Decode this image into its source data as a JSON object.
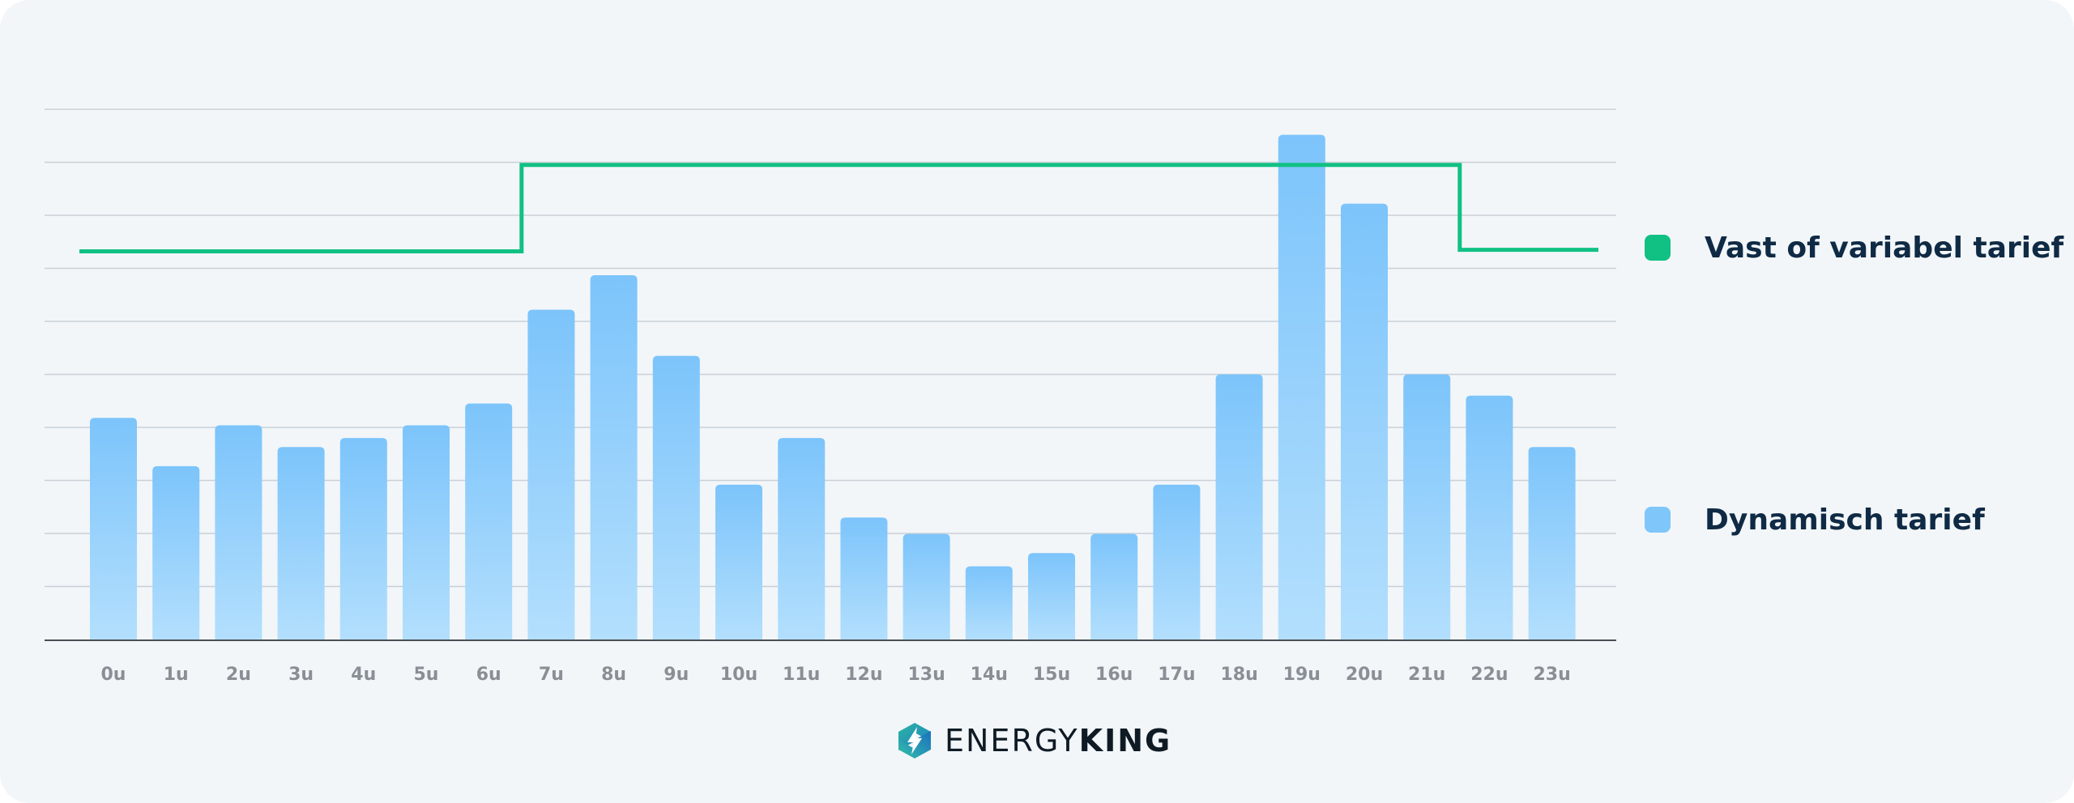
{
  "chart_data": {
    "type": "bar",
    "title": "",
    "xlabel": "",
    "ylabel": "",
    "categories": [
      "0u",
      "1u",
      "2u",
      "3u",
      "4u",
      "5u",
      "6u",
      "7u",
      "8u",
      "9u",
      "10u",
      "11u",
      "12u",
      "13u",
      "14u",
      "15u",
      "16u",
      "17u",
      "18u",
      "19u",
      "20u",
      "21u",
      "22u",
      "23u"
    ],
    "ylim": [
      0,
      10
    ],
    "grid": true,
    "series": [
      {
        "name": "Dynamisch tarief",
        "type": "bar",
        "color": "#7fc6fb",
        "values": [
          4.18,
          3.27,
          4.04,
          3.63,
          3.8,
          4.04,
          4.45,
          6.22,
          6.87,
          5.35,
          2.92,
          3.8,
          2.3,
          1.99,
          1.38,
          1.63,
          1.99,
          2.92,
          5.0,
          9.52,
          8.22,
          5.0,
          4.6,
          3.63
        ]
      },
      {
        "name": "Vast of variabel tarief",
        "type": "line",
        "step": true,
        "color": "#10c183",
        "values": [
          7.32,
          7.32,
          7.32,
          7.32,
          7.32,
          7.32,
          7.32,
          8.95,
          8.95,
          8.95,
          8.95,
          8.95,
          8.95,
          8.95,
          8.95,
          8.95,
          8.95,
          8.95,
          8.95,
          8.95,
          8.95,
          8.95,
          7.35,
          7.35
        ]
      }
    ]
  },
  "legend": {
    "position": "right",
    "items": [
      {
        "label": "Vast of variabel tarief",
        "color": "#10c183"
      },
      {
        "label": "Dynamisch tarief",
        "color": "#7fc6fb"
      }
    ]
  },
  "brand": {
    "name_light": "ENERGY",
    "name_bold": "KING",
    "icon": "energyking-logo-icon"
  }
}
